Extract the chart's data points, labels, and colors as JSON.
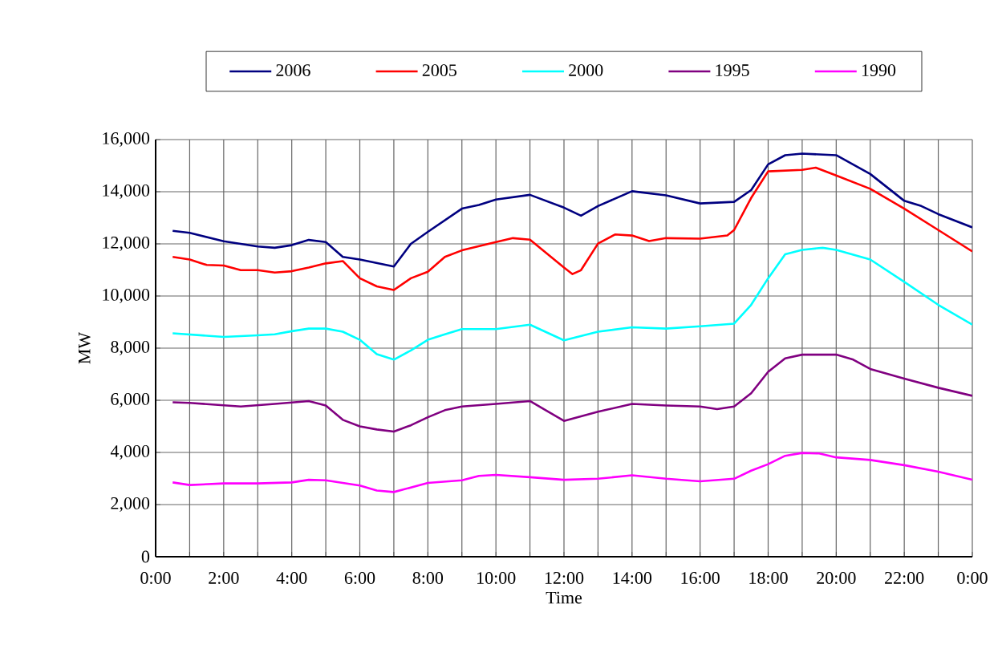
{
  "chart_data": {
    "type": "line",
    "xlabel": "Time",
    "ylabel": "MW",
    "xlim": [
      0,
      24
    ],
    "ylim": [
      0,
      16000
    ],
    "xticks": [
      {
        "value": 0,
        "label": "0:00"
      },
      {
        "value": 1,
        "label": null
      },
      {
        "value": 2,
        "label": "2:00"
      },
      {
        "value": 3,
        "label": null
      },
      {
        "value": 4,
        "label": "4:00"
      },
      {
        "value": 5,
        "label": null
      },
      {
        "value": 6,
        "label": "6:00"
      },
      {
        "value": 7,
        "label": null
      },
      {
        "value": 8,
        "label": "8:00"
      },
      {
        "value": 9,
        "label": null
      },
      {
        "value": 10,
        "label": "10:00"
      },
      {
        "value": 11,
        "label": null
      },
      {
        "value": 12,
        "label": "12:00"
      },
      {
        "value": 13,
        "label": null
      },
      {
        "value": 14,
        "label": "14:00"
      },
      {
        "value": 15,
        "label": null
      },
      {
        "value": 16,
        "label": "16:00"
      },
      {
        "value": 17,
        "label": null
      },
      {
        "value": 18,
        "label": "18:00"
      },
      {
        "value": 19,
        "label": null
      },
      {
        "value": 20,
        "label": "20:00"
      },
      {
        "value": 21,
        "label": null
      },
      {
        "value": 22,
        "label": "22:00"
      },
      {
        "value": 23,
        "label": null
      },
      {
        "value": 24,
        "label": "0:00"
      }
    ],
    "yticks": [
      0,
      {
        "value": 2000,
        "label": "2,000"
      },
      {
        "value": 4000,
        "label": "4,000"
      },
      {
        "value": 6000,
        "label": "6,000"
      },
      {
        "value": 8000,
        "label": "8,000"
      },
      {
        "value": 10000,
        "label": "10,000"
      },
      {
        "value": 12000,
        "label": "12,000"
      },
      {
        "value": 14000,
        "label": "14,000"
      },
      {
        "value": 16000,
        "label": "16,000"
      }
    ],
    "grid": true,
    "legend": "top",
    "marker": "none",
    "line_style": "solid",
    "series": [
      {
        "name": "2006",
        "color": "#000080",
        "x": [
          0.5,
          1,
          2,
          3,
          3.5,
          4,
          4.5,
          5,
          5.5,
          6,
          7,
          7.5,
          8,
          9,
          9.5,
          10,
          11,
          12,
          12.5,
          13,
          14,
          15,
          16,
          17,
          17.5,
          18,
          18.5,
          19,
          20,
          21,
          22,
          22.5,
          23,
          24
        ],
        "values": [
          12500,
          12420,
          12100,
          11900,
          11850,
          11950,
          12150,
          12070,
          11500,
          11400,
          11130,
          12000,
          12460,
          13350,
          13490,
          13700,
          13880,
          13390,
          13080,
          13450,
          14020,
          13860,
          13550,
          13610,
          14060,
          15050,
          15400,
          15460,
          15400,
          14680,
          13650,
          13450,
          13140,
          12630
        ]
      },
      {
        "name": "2005",
        "color": "#ff0000",
        "x": [
          0.5,
          1,
          1.5,
          2,
          2.5,
          3,
          3.5,
          4,
          4.5,
          5,
          5.5,
          6,
          6.5,
          7,
          7.5,
          8,
          8.5,
          9,
          10,
          10.5,
          11,
          12,
          12.25,
          12.5,
          13,
          13.5,
          14,
          14.5,
          15,
          16,
          16.8,
          17,
          17.5,
          18,
          19,
          19.4,
          20,
          21,
          22,
          23,
          24
        ],
        "values": [
          11500,
          11400,
          11190,
          11170,
          10990,
          10990,
          10900,
          10950,
          11090,
          11250,
          11340,
          10680,
          10370,
          10230,
          10680,
          10930,
          11500,
          11750,
          12070,
          12220,
          12160,
          11090,
          10840,
          10990,
          12010,
          12360,
          12320,
          12110,
          12220,
          12200,
          12320,
          12530,
          13760,
          14780,
          14840,
          14920,
          14620,
          14110,
          13350,
          12530,
          11710
        ]
      },
      {
        "name": "2000",
        "color": "#00ffff",
        "x": [
          0.5,
          2,
          3,
          3.5,
          4,
          4.5,
          5,
          5.5,
          6,
          6.5,
          7,
          7.5,
          8,
          8.5,
          9,
          10,
          11,
          12,
          13,
          14,
          15,
          16,
          17,
          17.5,
          18,
          18.5,
          19,
          19.6,
          20,
          21,
          22,
          23,
          24
        ],
        "values": [
          8570,
          8430,
          8490,
          8530,
          8650,
          8750,
          8750,
          8630,
          8320,
          7770,
          7560,
          7910,
          8320,
          8530,
          8730,
          8730,
          8900,
          8300,
          8630,
          8800,
          8750,
          8840,
          8940,
          9660,
          10680,
          11600,
          11770,
          11850,
          11770,
          11400,
          10540,
          9660,
          8900
        ]
      },
      {
        "name": "1995",
        "color": "#800080",
        "x": [
          0.5,
          1,
          2.5,
          3.5,
          4.5,
          5,
          5.5,
          6,
          6.5,
          7,
          7.5,
          8,
          8.5,
          9,
          10,
          11,
          12,
          13,
          14,
          15,
          16,
          16.5,
          17,
          17.5,
          18,
          18.5,
          19,
          20,
          20.5,
          21,
          22,
          23,
          24
        ],
        "values": [
          5920,
          5900,
          5760,
          5860,
          5970,
          5800,
          5250,
          5000,
          4880,
          4800,
          5040,
          5350,
          5620,
          5760,
          5860,
          5970,
          5210,
          5560,
          5860,
          5800,
          5760,
          5660,
          5760,
          6270,
          7090,
          7610,
          7750,
          7750,
          7560,
          7200,
          6830,
          6480,
          6170
        ]
      },
      {
        "name": "1990",
        "color": "#ff00ff",
        "x": [
          0.5,
          1,
          2,
          3,
          4,
          4.5,
          5,
          6,
          6.5,
          7,
          8,
          9,
          9.5,
          10,
          11,
          12,
          13,
          14,
          15,
          16,
          17,
          17.5,
          18,
          18.5,
          19,
          19.5,
          20,
          21,
          22,
          23,
          24
        ],
        "values": [
          2850,
          2750,
          2810,
          2810,
          2850,
          2950,
          2930,
          2730,
          2540,
          2480,
          2830,
          2930,
          3100,
          3140,
          3050,
          2950,
          2990,
          3120,
          2990,
          2890,
          2990,
          3300,
          3550,
          3870,
          3980,
          3960,
          3810,
          3710,
          3510,
          3260,
          2950
        ]
      }
    ]
  }
}
